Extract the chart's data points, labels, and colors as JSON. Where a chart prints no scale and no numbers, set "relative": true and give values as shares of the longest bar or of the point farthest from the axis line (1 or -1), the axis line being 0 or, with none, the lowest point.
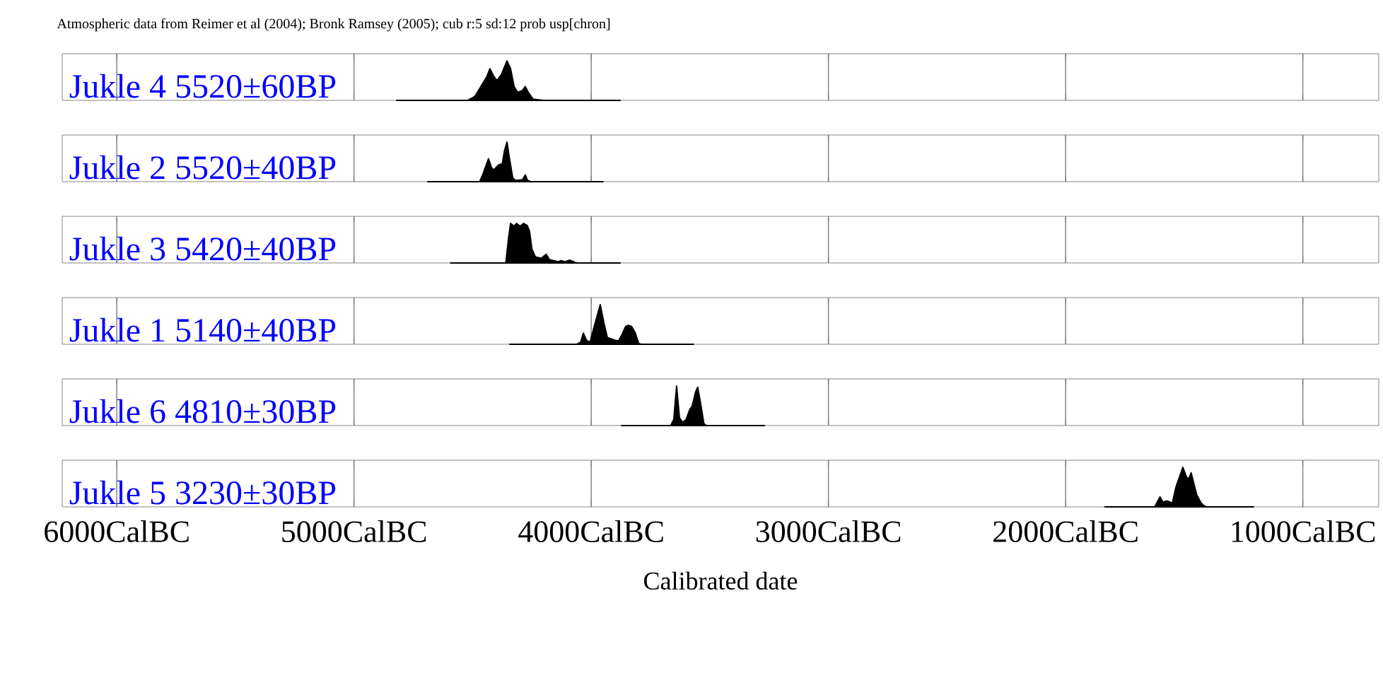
{
  "chart_data": [
    {
      "type": "area",
      "title": "Jukle 4 5520±60BP",
      "annotations": [
        "Atmospheric data from Reimer et al (2004); Bronk Ramsey (2005); cub r:5 sd:12 prob usp[chron]"
      ],
      "relative": true,
      "xlim": [
        -6230,
        -680
      ],
      "xticks": [
        {
          "value": -6000,
          "label": null
        },
        {
          "value": -5000,
          "label": null
        },
        {
          "value": -4000,
          "label": null
        },
        {
          "value": -3000,
          "label": null
        },
        {
          "value": -2000,
          "label": null
        },
        {
          "value": -1000,
          "label": null
        }
      ],
      "grid": "x",
      "tick_labels": false,
      "series": [
        {
          "color": "#000000",
          "x": [
            -4820,
            -4520,
            -4490,
            -4440,
            -4427,
            -4410,
            -4397,
            -4379,
            -4365,
            -4355,
            -4340,
            -4325,
            -4310,
            -4290,
            -4278,
            -4265,
            -4245,
            -4200,
            -3878
          ],
          "values": [
            0,
            0,
            0.1,
            0.6,
            0.8,
            0.6,
            0.5,
            0.65,
            0.85,
            1.0,
            0.8,
            0.35,
            0.2,
            0.25,
            0.35,
            0.2,
            0.03,
            0,
            0
          ]
        }
      ]
    },
    {
      "type": "area",
      "title": "Jukle 2 5520±40BP",
      "relative": true,
      "xlim": [
        -6230,
        -680
      ],
      "xticks": [
        {
          "value": -6000,
          "label": null
        },
        {
          "value": -5000,
          "label": null
        },
        {
          "value": -4000,
          "label": null
        },
        {
          "value": -3000,
          "label": null
        },
        {
          "value": -2000,
          "label": null
        },
        {
          "value": -1000,
          "label": null
        }
      ],
      "grid": "x",
      "tick_labels": false,
      "series": [
        {
          "color": "#000000",
          "x": [
            -4689,
            -4470,
            -4456,
            -4433,
            -4420,
            -4410,
            -4391,
            -4375,
            -4365,
            -4355,
            -4345,
            -4331,
            -4320,
            -4290,
            -4278,
            -4268,
            -4255,
            -3950
          ],
          "values": [
            0,
            0,
            0.2,
            0.58,
            0.35,
            0.3,
            0.42,
            0.45,
            0.8,
            1.0,
            0.6,
            0.1,
            0.03,
            0.05,
            0.17,
            0.03,
            0,
            0
          ]
        }
      ]
    },
    {
      "type": "area",
      "title": "Jukle 3 5420±40BP",
      "relative": true,
      "xlim": [
        -6230,
        -680
      ],
      "xticks": [
        {
          "value": -6000,
          "label": null
        },
        {
          "value": -5000,
          "label": null
        },
        {
          "value": -4000,
          "label": null
        },
        {
          "value": -3000,
          "label": null
        },
        {
          "value": -2000,
          "label": null
        },
        {
          "value": -1000,
          "label": null
        }
      ],
      "grid": "x",
      "tick_labels": false,
      "series": [
        {
          "color": "#000000",
          "x": [
            -4593,
            -4360,
            -4349,
            -4340,
            -4325,
            -4315,
            -4300,
            -4285,
            -4270,
            -4260,
            -4250,
            -4235,
            -4210,
            -4190,
            -4175,
            -4140,
            -4128,
            -4110,
            -4090,
            -4070,
            -4060,
            -3878
          ],
          "values": [
            0,
            0,
            0.6,
            1.0,
            0.93,
            1.0,
            0.93,
            1.0,
            0.95,
            0.8,
            0.35,
            0.15,
            0.12,
            0.22,
            0.08,
            0.03,
            0.06,
            0.03,
            0.07,
            0.02,
            0,
            0
          ]
        }
      ]
    },
    {
      "type": "area",
      "title": "Jukle 1 5140±40BP",
      "relative": true,
      "xlim": [
        -6230,
        -680
      ],
      "xticks": [
        {
          "value": -6000,
          "label": null
        },
        {
          "value": -5000,
          "label": null
        },
        {
          "value": -4000,
          "label": null
        },
        {
          "value": -3000,
          "label": null
        },
        {
          "value": -2000,
          "label": null
        },
        {
          "value": -1000,
          "label": null
        }
      ],
      "grid": "x",
      "tick_labels": false,
      "series": [
        {
          "color": "#000000",
          "x": [
            -4343,
            -4060,
            -4045,
            -4033,
            -4020,
            -4005,
            -3985,
            -3962,
            -3945,
            -3932,
            -3910,
            -3885,
            -3870,
            -3855,
            -3843,
            -3830,
            -3815,
            -3800,
            -3790,
            -3569
          ],
          "values": [
            0,
            0,
            0.05,
            0.28,
            0.1,
            0.05,
            0.5,
            1.0,
            0.5,
            0.17,
            0.12,
            0.08,
            0.25,
            0.45,
            0.48,
            0.45,
            0.3,
            0.02,
            0,
            0
          ]
        }
      ]
    },
    {
      "type": "area",
      "title": "Jukle 6 4810±30BP",
      "relative": true,
      "xlim": [
        -6230,
        -680
      ],
      "xticks": [
        {
          "value": -6000,
          "label": null
        },
        {
          "value": -5000,
          "label": null
        },
        {
          "value": -4000,
          "label": null
        },
        {
          "value": -3000,
          "label": null
        },
        {
          "value": -2000,
          "label": null
        },
        {
          "value": -1000,
          "label": null
        }
      ],
      "grid": "x",
      "tick_labels": false,
      "series": [
        {
          "color": "#000000",
          "x": [
            -3872,
            -3665,
            -3652,
            -3640,
            -3628,
            -3615,
            -3600,
            -3585,
            -3574,
            -3560,
            -3551,
            -3540,
            -3525,
            -3515,
            -3270
          ],
          "values": [
            0,
            0,
            0.15,
            1.0,
            0.2,
            0.08,
            0.15,
            0.4,
            0.5,
            0.85,
            0.97,
            0.6,
            0.05,
            0,
            0
          ]
        }
      ]
    },
    {
      "type": "area",
      "title": "Jukle 5 3230±30BP",
      "xlabel": "Calibrated date",
      "relative": true,
      "xlim": [
        -6230,
        -680
      ],
      "xticks": [
        {
          "value": -6000,
          "label": "6000CalBC"
        },
        {
          "value": -5000,
          "label": "5000CalBC"
        },
        {
          "value": -4000,
          "label": "4000CalBC"
        },
        {
          "value": -3000,
          "label": "3000CalBC"
        },
        {
          "value": -2000,
          "label": "2000CalBC"
        },
        {
          "value": -1000,
          "label": "1000CalBC"
        }
      ],
      "grid": "x",
      "tick_labels": "x",
      "series": [
        {
          "color": "#000000",
          "x": [
            -1834,
            -1625,
            -1602,
            -1590,
            -1572,
            -1550,
            -1535,
            -1506,
            -1490,
            -1482,
            -1471,
            -1460,
            -1447,
            -1429,
            -1415,
            -1405,
            -1208
          ],
          "values": [
            0,
            0,
            0.25,
            0.12,
            0.15,
            0.1,
            0.5,
            1.0,
            0.75,
            0.7,
            0.86,
            0.6,
            0.3,
            0.1,
            0.02,
            0,
            0
          ]
        }
      ]
    }
  ]
}
